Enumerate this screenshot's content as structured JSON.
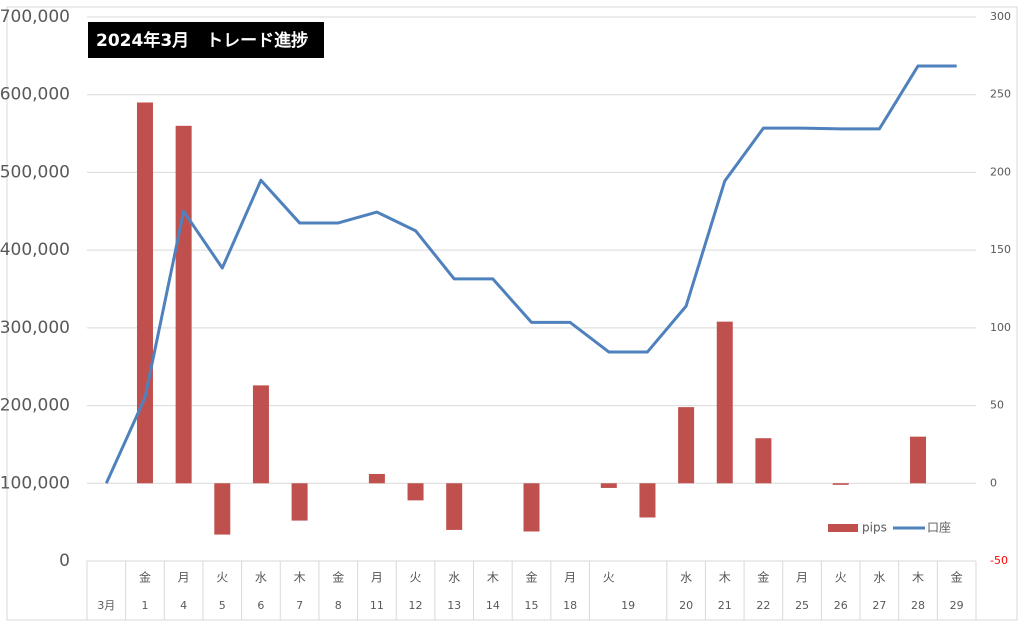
{
  "chart_data": {
    "type": "combo",
    "title": "2024年3月　トレード進捗",
    "weekdays": [
      null,
      "金",
      "月",
      "火",
      "水",
      "木",
      "金",
      "月",
      "火",
      "水",
      "木",
      "金",
      "月",
      "火",
      null,
      "水",
      "木",
      "金",
      "月",
      "火",
      "水",
      "木",
      "金"
    ],
    "dates": [
      "3月",
      "1",
      "4",
      "5",
      "6",
      "7",
      "8",
      "11",
      "12",
      "13",
      "14",
      "15",
      "18",
      "19",
      null,
      "20",
      "21",
      "22",
      "25",
      "26",
      "27",
      "28",
      "29"
    ],
    "series": [
      {
        "name": "pips",
        "type": "bar",
        "axis": "y2",
        "color": "#c0504d",
        "values": [
          null,
          245,
          230,
          -33,
          63,
          -24,
          null,
          6,
          -11,
          -30,
          null,
          -31,
          null,
          -3,
          -22,
          49,
          104,
          29,
          null,
          -1,
          null,
          30,
          null
        ]
      },
      {
        "name": "口座",
        "type": "line",
        "color": "#4f81bd",
        "values": [
          100000,
          210000,
          450000,
          377000,
          490000,
          435000,
          435000,
          449000,
          425000,
          363000,
          363000,
          307000,
          307000,
          269000,
          269000,
          328000,
          489000,
          557000,
          557000,
          556000,
          556000,
          637000,
          637000
        ]
      }
    ],
    "ylim": [
      0,
      700000
    ],
    "yticks": [
      0,
      {
        "value": 100000,
        "label": "100,000"
      },
      {
        "value": 200000,
        "label": "200,000"
      },
      {
        "value": 300000,
        "label": "300,000"
      },
      {
        "value": 400000,
        "label": "400,000"
      },
      {
        "value": 500000,
        "label": "500,000"
      },
      {
        "value": 600000,
        "label": "600,000"
      },
      {
        "value": 700000,
        "label": "700,000"
      }
    ],
    "y2lim": [
      -50,
      300
    ],
    "y2ticks": [
      -50,
      0,
      50,
      100,
      150,
      200,
      250,
      300
    ],
    "negative_tick_color": "#ff0000",
    "grid": true,
    "legend": "bottom-right"
  }
}
